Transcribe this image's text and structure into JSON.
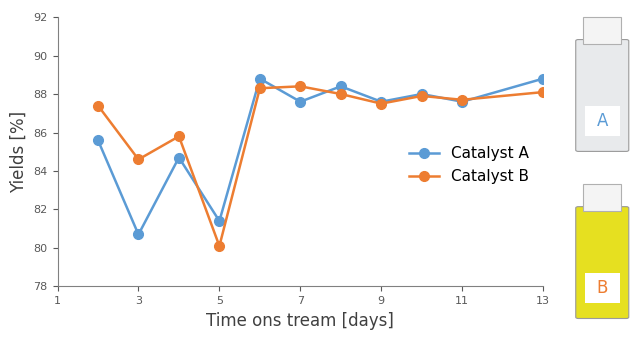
{
  "chart_data": {
    "type": "line",
    "x_label": "Time ons tream [days]",
    "y_label": "Yields [%]",
    "xlim": [
      1,
      13
    ],
    "xticks": [
      1,
      3,
      5,
      7,
      9,
      11,
      13
    ],
    "ylim": [
      78,
      92
    ],
    "yticks": [
      78,
      80,
      82,
      84,
      86,
      88,
      90,
      92
    ],
    "grid": false,
    "legend": "right",
    "annotations": [
      "A",
      "B"
    ],
    "series": [
      {
        "name": "Catalyst A",
        "color": "#5b9bd5",
        "marker": "o",
        "line_style": "solid",
        "x": [
          2,
          3,
          4,
          5,
          6,
          7,
          8,
          9,
          10,
          11,
          13
        ],
        "values": [
          85.6,
          80.7,
          84.7,
          81.4,
          88.8,
          87.6,
          88.4,
          87.6,
          88.0,
          87.6,
          88.8
        ]
      },
      {
        "name": "Catalyst B",
        "color": "#ed7d31",
        "marker": "o",
        "line_style": "solid",
        "x": [
          2,
          3,
          4,
          5,
          6,
          7,
          8,
          9,
          10,
          11,
          13
        ],
        "values": [
          87.4,
          84.6,
          85.8,
          80.1,
          88.3,
          88.4,
          88.0,
          87.5,
          87.9,
          87.7,
          88.1
        ]
      }
    ]
  }
}
